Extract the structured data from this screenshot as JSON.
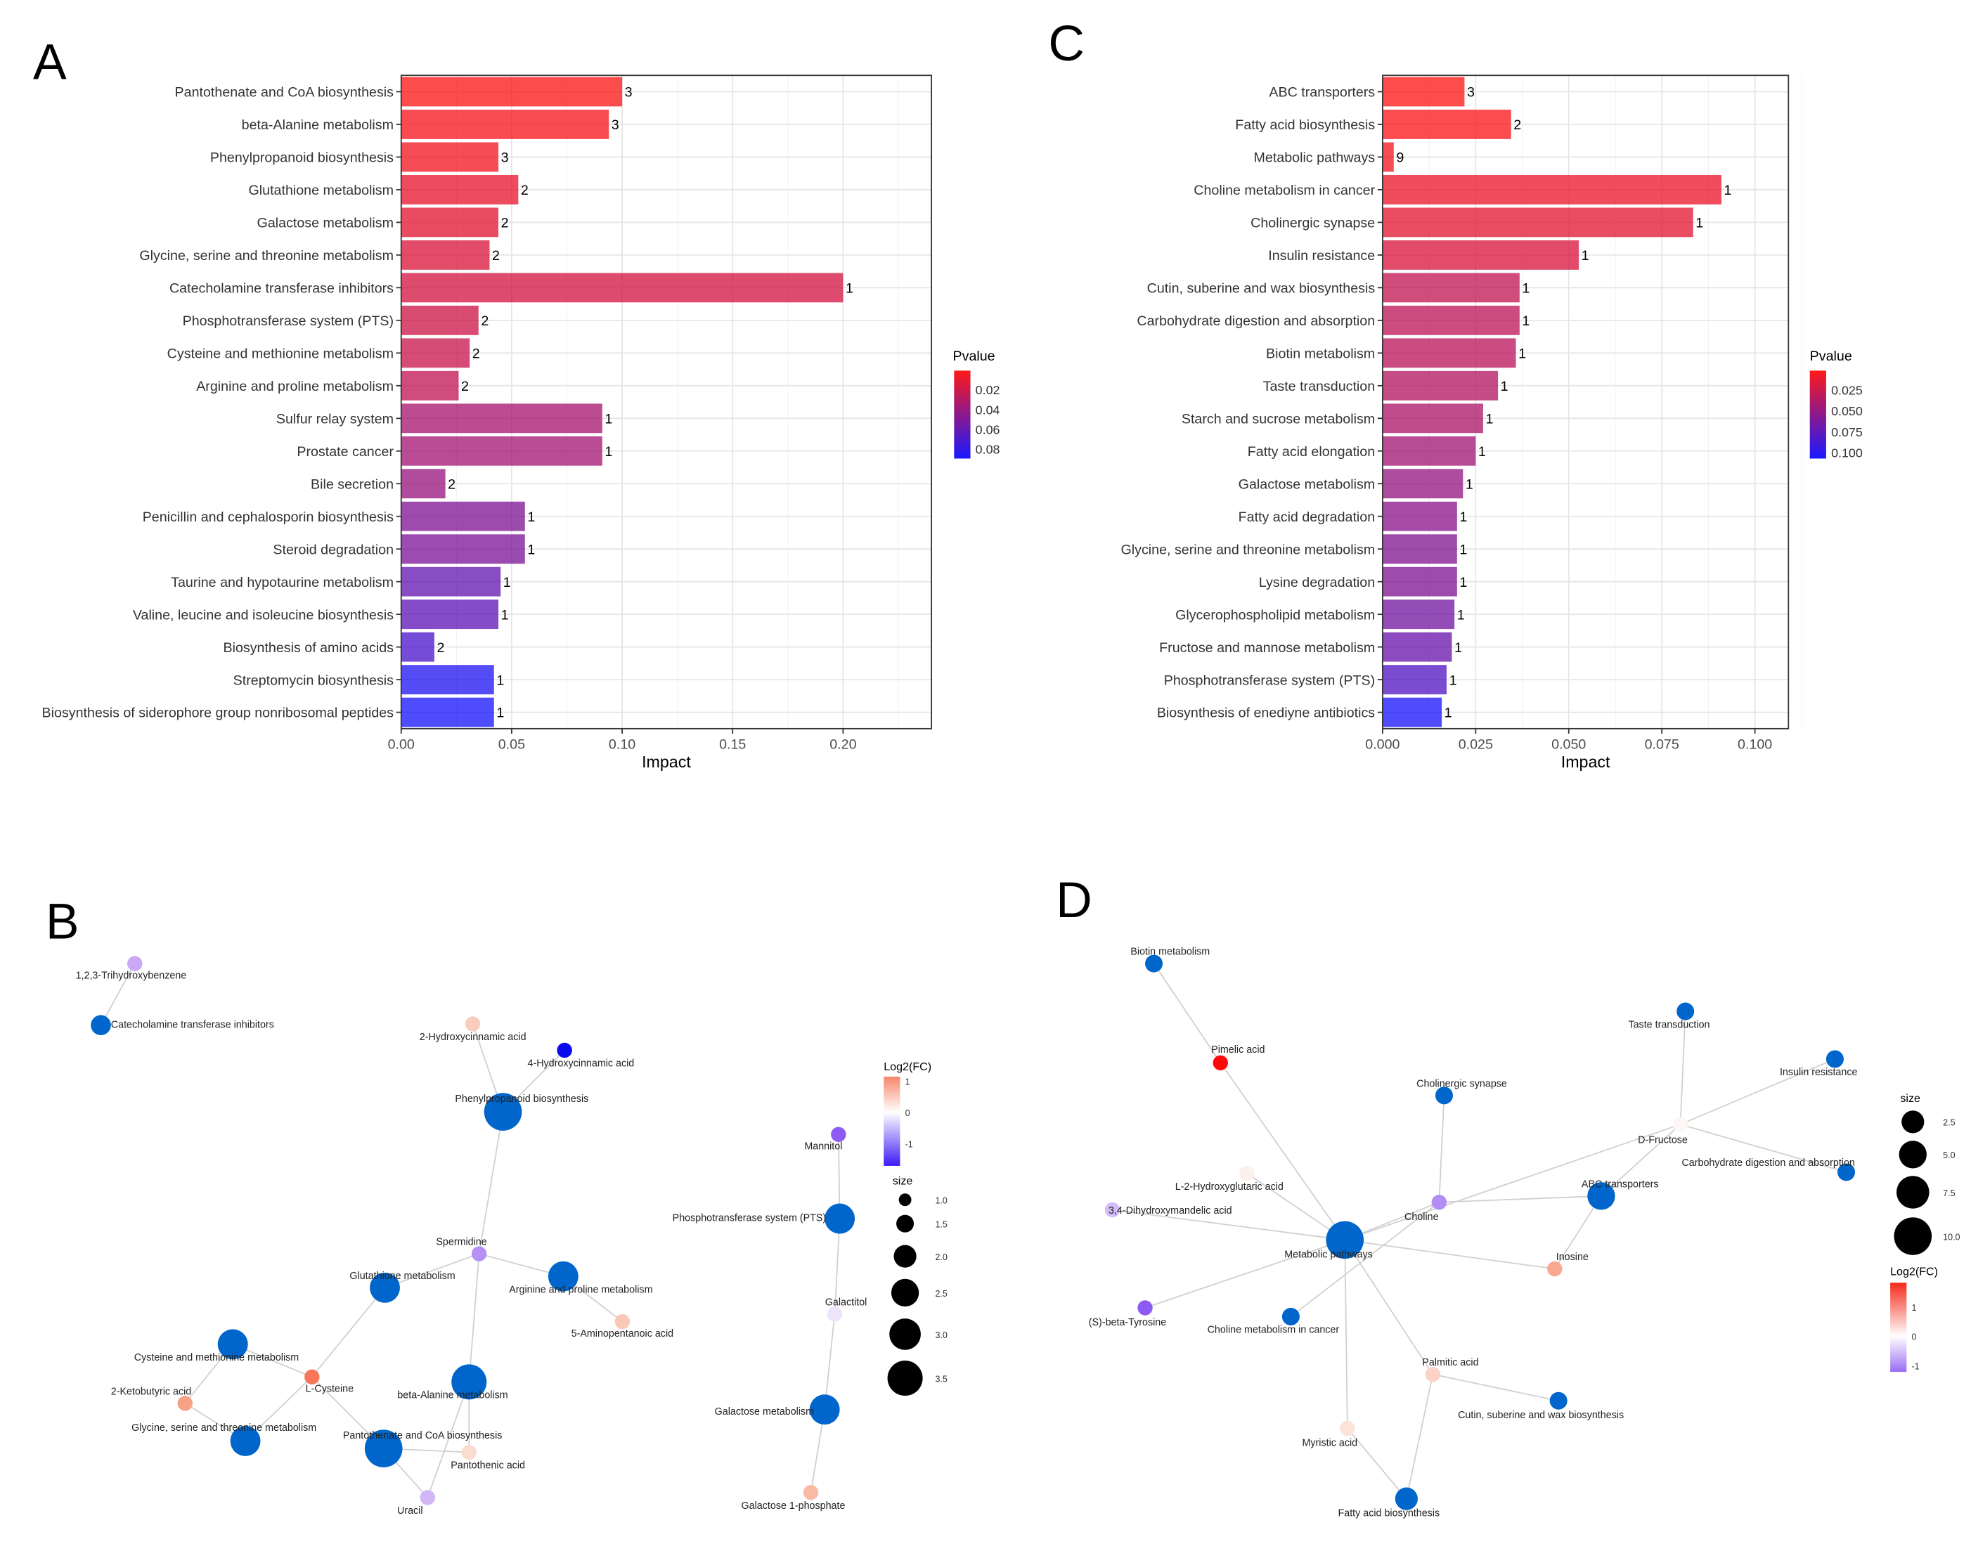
{
  "panels": {
    "A": "A",
    "B": "B",
    "C": "C",
    "D": "D"
  },
  "chart_data": [
    {
      "panel": "A",
      "type": "bar",
      "orientation": "horizontal",
      "xlabel": "Impact",
      "xlim": [
        0,
        0.24
      ],
      "xticks": [
        "0.00",
        "0.05",
        "0.10",
        "0.15",
        "0.20"
      ],
      "xtick_values": [
        0,
        0.05,
        0.1,
        0.15,
        0.2
      ],
      "grid": true,
      "legend": {
        "title": "Pvalue",
        "placement": "right",
        "range": [
          0.001,
          0.09
        ],
        "ticks": [
          "0.02",
          "0.04",
          "0.06",
          "0.08"
        ],
        "tick_values": [
          0.02,
          0.04,
          0.06,
          0.08
        ],
        "low_color": "#FF0000",
        "high_color": "#0000FF"
      },
      "categories": [
        "Pantothenate and CoA biosynthesis",
        "beta-Alanine metabolism",
        "Phenylpropanoid biosynthesis",
        "Glutathione metabolism",
        "Galactose metabolism",
        "Glycine, serine and threonine metabolism",
        "Catecholamine transferase inhibitors",
        "Phosphotransferase system (PTS)",
        "Cysteine and methionine metabolism",
        "Arginine and proline metabolism",
        "Sulfur relay system",
        "Prostate cancer",
        "Bile secretion",
        "Penicillin and cephalosporin biosynthesis",
        "Steroid degradation",
        "Taurine and hypotaurine metabolism",
        "Valine, leucine and isoleucine biosynthesis",
        "Biosynthesis of amino acids",
        "Streptomycin biosynthesis",
        "Biosynthesis of siderophore group nonribosomal peptides"
      ],
      "values": [
        0.1,
        0.094,
        0.044,
        0.053,
        0.044,
        0.04,
        0.2,
        0.035,
        0.031,
        0.026,
        0.091,
        0.091,
        0.02,
        0.056,
        0.056,
        0.045,
        0.044,
        0.015,
        0.042,
        0.042
      ],
      "counts": [
        "3",
        "3",
        "3",
        "2",
        "2",
        "2",
        "1",
        "2",
        "2",
        "2",
        "1",
        "1",
        "2",
        "1",
        "1",
        "1",
        "1",
        "2",
        "1",
        "1"
      ],
      "pvalues": [
        0.002,
        0.004,
        0.006,
        0.01,
        0.012,
        0.015,
        0.018,
        0.02,
        0.022,
        0.025,
        0.035,
        0.036,
        0.04,
        0.05,
        0.051,
        0.06,
        0.062,
        0.07,
        0.085,
        0.089
      ]
    },
    {
      "panel": "C",
      "type": "bar",
      "orientation": "horizontal",
      "xlabel": "Impact",
      "xlim": [
        0,
        0.109
      ],
      "xticks": [
        "0.000",
        "0.025",
        "0.050",
        "0.075",
        "0.100"
      ],
      "xtick_values": [
        0,
        0.025,
        0.05,
        0.075,
        0.1
      ],
      "grid": true,
      "legend": {
        "title": "Pvalue",
        "placement": "right",
        "range": [
          0.0025,
          0.1075
        ],
        "ticks": [
          "0.025",
          "0.050",
          "0.075",
          "0.100"
        ],
        "tick_values": [
          0.025,
          0.05,
          0.075,
          0.1
        ],
        "low_color": "#FF0000",
        "high_color": "#0000FF"
      },
      "categories": [
        "ABC transporters",
        "Fatty acid biosynthesis",
        "Metabolic pathways",
        "Choline metabolism in cancer",
        "Cholinergic synapse",
        "Insulin resistance",
        "Cutin, suberine and wax biosynthesis",
        "Carbohydrate digestion and absorption",
        "Biotin metabolism",
        "Taste transduction",
        "Starch and sucrose metabolism",
        "Fatty acid elongation",
        "Galactose metabolism",
        "Fatty acid degradation",
        "Glycine, serine and threonine metabolism",
        "Lysine degradation",
        "Glycerophospholipid metabolism",
        "Fructose and mannose metabolism",
        "Phosphotransferase system (PTS)",
        "Biosynthesis of enediyne antibiotics"
      ],
      "values": [
        0.022,
        0.0345,
        0.003,
        0.091,
        0.0834,
        0.0527,
        0.0368,
        0.0368,
        0.0358,
        0.031,
        0.027,
        0.025,
        0.0216,
        0.02,
        0.02,
        0.02,
        0.0193,
        0.0186,
        0.0172,
        0.0159
      ],
      "counts": [
        "3",
        "2",
        "9",
        "1",
        "1",
        "1",
        "1",
        "1",
        "1",
        "1",
        "1",
        "1",
        "1",
        "1",
        "1",
        "1",
        "1",
        "1",
        "1",
        "1"
      ],
      "pvalues": [
        0.003,
        0.005,
        0.008,
        0.012,
        0.015,
        0.02,
        0.03,
        0.032,
        0.034,
        0.036,
        0.04,
        0.045,
        0.05,
        0.055,
        0.058,
        0.06,
        0.065,
        0.07,
        0.08,
        0.105
      ]
    }
  ],
  "networks": {
    "B": {
      "legend_color_title": "Log2(FC)",
      "legend_color_ticks": [
        "1",
        "0",
        "-1"
      ],
      "legend_size_title": "size",
      "legend_size_ticks": [
        "1.0",
        "1.5",
        "2.0",
        "2.5",
        "3.0",
        "3.5"
      ],
      "nodes": [
        {
          "label": "1,2,3-Trihydroxybenzene",
          "color": "#C9A8F5"
        },
        {
          "label": "Catecholamine transferase inhibitors",
          "color": "#0066CC"
        },
        {
          "label": "2-Hydroxycinnamic acid",
          "color": "#F9CDBD"
        },
        {
          "label": "4-Hydroxycinnamic acid",
          "color": "#0A0AEF"
        },
        {
          "label": "Phenylpropanoid biosynthesis",
          "color": "#0066CC"
        },
        {
          "label": "Spermidine",
          "color": "#B690F5"
        },
        {
          "label": "Glutathione metabolism",
          "color": "#0066CC"
        },
        {
          "label": "Arginine and proline metabolism",
          "color": "#0066CC"
        },
        {
          "label": "5-Aminopentanoic acid",
          "color": "#F9C8B6"
        },
        {
          "label": "Cysteine and methionine metabolism",
          "color": "#0066CC"
        },
        {
          "label": "L-Cysteine",
          "color": "#F7765A"
        },
        {
          "label": "2-Ketobutyric acid",
          "color": "#F8A184"
        },
        {
          "label": "Glycine, serine and threonine metabolism",
          "color": "#0066CC"
        },
        {
          "label": "beta-Alanine metabolism",
          "color": "#0066CC"
        },
        {
          "label": "Pantothenate and CoA biosynthesis",
          "color": "#0066CC"
        },
        {
          "label": "Pantothenic acid",
          "color": "#FBDCD0"
        },
        {
          "label": "Uracil",
          "color": "#D2B6F6"
        },
        {
          "label": "Mannitol",
          "color": "#8E5CF5"
        },
        {
          "label": "Phosphotransferase system (PTS)",
          "color": "#0066CC"
        },
        {
          "label": "Galactitol",
          "color": "#EDE4FB"
        },
        {
          "label": "Galactose metabolism",
          "color": "#0066CC"
        },
        {
          "label": "Galactose 1-phosphate",
          "color": "#F9BAA4"
        }
      ]
    },
    "D": {
      "legend_color_title": "Log2(FC)",
      "legend_color_ticks": [
        "1",
        "0",
        "-1"
      ],
      "legend_size_title": "size",
      "legend_size_ticks": [
        "2.5",
        "5.0",
        "7.5",
        "10.0"
      ],
      "nodes": [
        {
          "label": "Biotin metabolism",
          "color": "#0066CC"
        },
        {
          "label": "Pimelic acid",
          "color": "#FF0A0A"
        },
        {
          "label": "Cholinergic synapse",
          "color": "#0066CC"
        },
        {
          "label": "Taste transduction",
          "color": "#0066CC"
        },
        {
          "label": "Insulin resistance",
          "color": "#0066CC"
        },
        {
          "label": "D-Fructose",
          "color": "#FDF8F6"
        },
        {
          "label": "Carbohydrate digestion and absorption",
          "color": "#0066CC"
        },
        {
          "label": "ABC transporters",
          "color": "#0066CC"
        },
        {
          "label": "L-2-Hydroxyglutaric acid",
          "color": "#FCF0EB"
        },
        {
          "label": "3,4-Dihydroxymandelic acid",
          "color": "#D5BEF8"
        },
        {
          "label": "Choline",
          "color": "#B38CF5"
        },
        {
          "label": "Metabolic pathways",
          "color": "#0066CC"
        },
        {
          "label": "Inosine",
          "color": "#F9A98F"
        },
        {
          "label": "(S)-beta-Tyrosine",
          "color": "#8D5BF4"
        },
        {
          "label": "Choline metabolism in cancer",
          "color": "#0066CC"
        },
        {
          "label": "Palmitic acid",
          "color": "#FAD3C5"
        },
        {
          "label": "Cutin, suberine and wax biosynthesis",
          "color": "#0066CC"
        },
        {
          "label": "Myristic acid",
          "color": "#FBE3DA"
        },
        {
          "label": "Fatty acid biosynthesis",
          "color": "#0066CC"
        }
      ]
    }
  }
}
